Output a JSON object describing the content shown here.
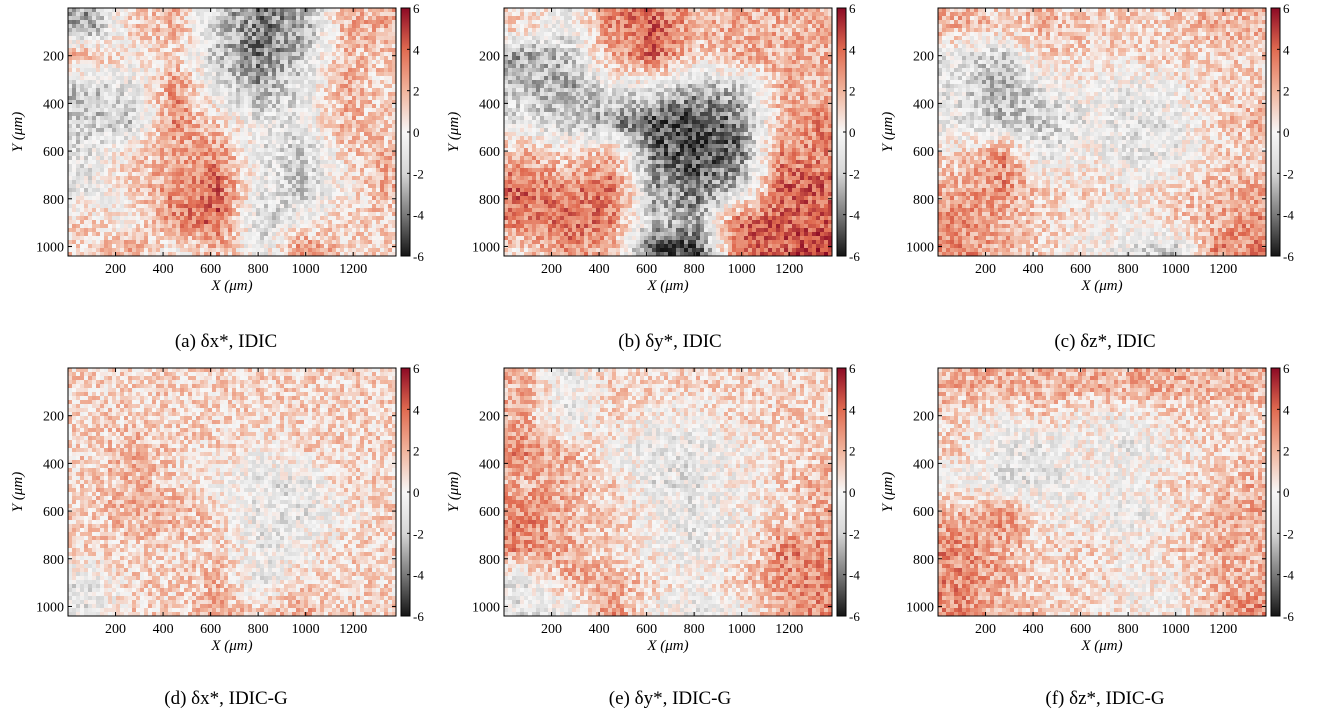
{
  "colormap": {
    "dark": "#141414",
    "gray": "#7a7a7a",
    "light_gray": "#d6d6d6",
    "white": "#f7f7f7",
    "light_red": "#f1b49c",
    "red": "#e06a50",
    "dark_red": "#8c0a24",
    "frame": "#000000"
  },
  "chart_data": [
    {
      "type": "heatmap",
      "panel": "(a)",
      "symbol": "δx*",
      "method": "IDIC",
      "caption": "(a) δx*, IDIC",
      "xlabel": "X (μm)",
      "ylabel": "Y (μm)",
      "xlim": [
        0,
        1380
      ],
      "ylim": [
        1040,
        0
      ],
      "xticks": [
        200,
        400,
        600,
        800,
        1000,
        1200
      ],
      "yticks": [
        200,
        400,
        600,
        800,
        1000
      ],
      "clim": [
        -6,
        6
      ],
      "cticks": [
        6,
        4,
        2,
        0,
        -2,
        -4,
        -6
      ],
      "sample_x_um": [
        90,
        270,
        450,
        630,
        810,
        990,
        1170,
        1320
      ],
      "sample_y_um": [
        80,
        200,
        340,
        480,
        620,
        760,
        900,
        1010
      ],
      "values": [
        [
          -3,
          1,
          2,
          -2,
          -4,
          -3,
          2,
          2
        ],
        [
          2,
          0,
          1,
          -2,
          -4,
          -2,
          2,
          1
        ],
        [
          -2,
          -1,
          3,
          -1,
          -3,
          -1,
          2,
          1
        ],
        [
          -2,
          -2,
          3,
          1,
          -1,
          -1,
          2,
          1
        ],
        [
          -1,
          1,
          2,
          3,
          -1,
          -2,
          1,
          2
        ],
        [
          -1,
          1,
          3,
          4,
          -1,
          -2,
          0,
          2
        ],
        [
          1,
          0,
          3,
          4,
          -2,
          0,
          1,
          1
        ],
        [
          1,
          2,
          0,
          2,
          -1,
          3,
          1,
          1
        ]
      ]
    },
    {
      "type": "heatmap",
      "panel": "(b)",
      "symbol": "δy*",
      "method": "IDIC",
      "caption": "(b) δy*, IDIC",
      "xlabel": "X (μm)",
      "ylabel": "Y (μm)",
      "xlim": [
        0,
        1380
      ],
      "ylim": [
        1040,
        0
      ],
      "xticks": [
        200,
        400,
        600,
        800,
        1000,
        1200
      ],
      "yticks": [
        200,
        400,
        600,
        800,
        1000
      ],
      "clim": [
        -6,
        6
      ],
      "cticks": [
        6,
        4,
        2,
        0,
        -2,
        -4,
        -6
      ],
      "sample_x_um": [
        90,
        270,
        450,
        630,
        810,
        990,
        1170,
        1320
      ],
      "sample_y_um": [
        80,
        200,
        340,
        480,
        620,
        760,
        900,
        1010
      ],
      "values": [
        [
          1,
          -1,
          3,
          4,
          2,
          2,
          2,
          2
        ],
        [
          -3,
          -2,
          2,
          4,
          1,
          2,
          2,
          2
        ],
        [
          -2,
          -3,
          -1,
          -1,
          -3,
          -2,
          2,
          2
        ],
        [
          -1,
          -2,
          -3,
          -5,
          -5,
          -4,
          2,
          3
        ],
        [
          2,
          1,
          2,
          -4,
          -5,
          -4,
          3,
          3
        ],
        [
          4,
          3,
          4,
          -3,
          -4,
          -2,
          4,
          4
        ],
        [
          3,
          4,
          3,
          -2,
          -3,
          4,
          4,
          4
        ],
        [
          1,
          3,
          2,
          -5,
          -5,
          4,
          4,
          5
        ]
      ]
    },
    {
      "type": "heatmap",
      "panel": "(c)",
      "symbol": "δz*",
      "method": "IDIC",
      "caption": "(c) δz*, IDIC",
      "xlabel": "X (μm)",
      "ylabel": "Y (μm)",
      "xlim": [
        0,
        1380
      ],
      "ylim": [
        1040,
        0
      ],
      "xticks": [
        200,
        400,
        600,
        800,
        1000,
        1200
      ],
      "yticks": [
        200,
        400,
        600,
        800,
        1000
      ],
      "clim": [
        -6,
        6
      ],
      "cticks": [
        6,
        4,
        2,
        0,
        -2,
        -4,
        -6
      ],
      "sample_x_um": [
        90,
        270,
        450,
        630,
        810,
        990,
        1170,
        1320
      ],
      "sample_y_um": [
        80,
        200,
        340,
        480,
        620,
        760,
        900,
        1010
      ],
      "values": [
        [
          2,
          1,
          2,
          1,
          1,
          1,
          2,
          2
        ],
        [
          -1,
          -2,
          1,
          1,
          1,
          1,
          1,
          1
        ],
        [
          -1,
          -3,
          -1,
          0,
          -1,
          0,
          1,
          1
        ],
        [
          -1,
          -2,
          -2,
          -1,
          -1,
          -1,
          1,
          2
        ],
        [
          1,
          3,
          -1,
          0,
          -1,
          -1,
          1,
          1
        ],
        [
          2,
          3,
          1,
          1,
          0,
          1,
          2,
          2
        ],
        [
          3,
          2,
          1,
          0,
          0,
          1,
          2,
          3
        ],
        [
          3,
          2,
          1,
          0,
          -1,
          -2,
          3,
          3
        ]
      ]
    },
    {
      "type": "heatmap",
      "panel": "(d)",
      "symbol": "δx*",
      "method": "IDIC-G",
      "caption": "(d) δx*, IDIC-G",
      "xlabel": "X (μm)",
      "ylabel": "Y (μm)",
      "xlim": [
        0,
        1380
      ],
      "ylim": [
        1040,
        0
      ],
      "xticks": [
        200,
        400,
        600,
        800,
        1000,
        1200
      ],
      "yticks": [
        200,
        400,
        600,
        800,
        1000
      ],
      "clim": [
        -6,
        6
      ],
      "cticks": [
        6,
        4,
        2,
        0,
        -2,
        -4,
        -6
      ],
      "sample_x_um": [
        90,
        270,
        450,
        630,
        810,
        990,
        1170,
        1320
      ],
      "sample_y_um": [
        80,
        200,
        340,
        480,
        620,
        760,
        900,
        1010
      ],
      "values": [
        [
          1,
          1,
          1,
          1,
          1,
          1,
          1,
          1
        ],
        [
          1,
          1,
          1,
          1,
          1,
          1,
          1,
          1
        ],
        [
          1,
          2,
          1,
          1,
          0,
          1,
          1,
          1
        ],
        [
          1,
          2,
          1,
          0,
          -1,
          -1,
          1,
          1
        ],
        [
          1,
          2,
          2,
          1,
          -1,
          -1,
          0,
          1
        ],
        [
          1,
          1,
          1,
          1,
          -1,
          0,
          1,
          1
        ],
        [
          -1,
          1,
          1,
          2,
          -1,
          1,
          1,
          1
        ],
        [
          -1,
          1,
          1,
          2,
          1,
          2,
          1,
          1
        ]
      ]
    },
    {
      "type": "heatmap",
      "panel": "(e)",
      "symbol": "δy*",
      "method": "IDIC-G",
      "caption": "(e) δy*, IDIC-G",
      "xlabel": "X (μm)",
      "ylabel": "Y (μm)",
      "xlim": [
        0,
        1380
      ],
      "ylim": [
        1040,
        0
      ],
      "xticks": [
        200,
        400,
        600,
        800,
        1000,
        1200
      ],
      "yticks": [
        200,
        400,
        600,
        800,
        1000
      ],
      "clim": [
        -6,
        6
      ],
      "cticks": [
        6,
        4,
        2,
        0,
        -2,
        -4,
        -6
      ],
      "sample_x_um": [
        90,
        270,
        450,
        630,
        810,
        990,
        1170,
        1320
      ],
      "sample_y_um": [
        80,
        200,
        340,
        480,
        620,
        760,
        900,
        1010
      ],
      "values": [
        [
          2,
          -1,
          1,
          1,
          1,
          1,
          1,
          1
        ],
        [
          2,
          -1,
          1,
          0,
          0,
          1,
          1,
          1
        ],
        [
          3,
          2,
          0,
          -1,
          -1,
          0,
          1,
          1
        ],
        [
          2,
          2,
          1,
          -1,
          -1,
          0,
          1,
          2
        ],
        [
          3,
          2,
          1,
          0,
          -1,
          0,
          1,
          2
        ],
        [
          3,
          2,
          1,
          0,
          -1,
          0,
          3,
          3
        ],
        [
          -1,
          2,
          2,
          1,
          0,
          1,
          3,
          3
        ],
        [
          -1,
          -1,
          3,
          0,
          -1,
          0,
          2,
          3
        ]
      ]
    },
    {
      "type": "heatmap",
      "panel": "(f)",
      "symbol": "δz*",
      "method": "IDIC-G",
      "caption": "(f) δz*, IDIC-G",
      "xlabel": "X (μm)",
      "ylabel": "Y (μm)",
      "xlim": [
        0,
        1380
      ],
      "ylim": [
        1040,
        0
      ],
      "xticks": [
        200,
        400,
        600,
        800,
        1000,
        1200
      ],
      "yticks": [
        200,
        400,
        600,
        800,
        1000
      ],
      "clim": [
        -6,
        6
      ],
      "cticks": [
        6,
        4,
        2,
        0,
        -2,
        -4,
        -6
      ],
      "sample_x_um": [
        90,
        270,
        450,
        630,
        810,
        990,
        1170,
        1320
      ],
      "sample_y_um": [
        80,
        200,
        340,
        480,
        620,
        760,
        900,
        1010
      ],
      "values": [
        [
          2,
          2,
          2,
          2,
          2,
          2,
          2,
          2
        ],
        [
          1,
          0,
          1,
          0,
          0,
          1,
          1,
          1
        ],
        [
          1,
          -1,
          -1,
          0,
          -1,
          0,
          1,
          1
        ],
        [
          0,
          -1,
          -1,
          0,
          0,
          1,
          1,
          2
        ],
        [
          2,
          3,
          0,
          0,
          -1,
          0,
          2,
          2
        ],
        [
          3,
          2,
          1,
          1,
          0,
          1,
          2,
          2
        ],
        [
          3,
          2,
          1,
          1,
          0,
          0,
          2,
          2
        ],
        [
          3,
          2,
          1,
          1,
          0,
          0,
          2,
          3
        ]
      ]
    }
  ]
}
